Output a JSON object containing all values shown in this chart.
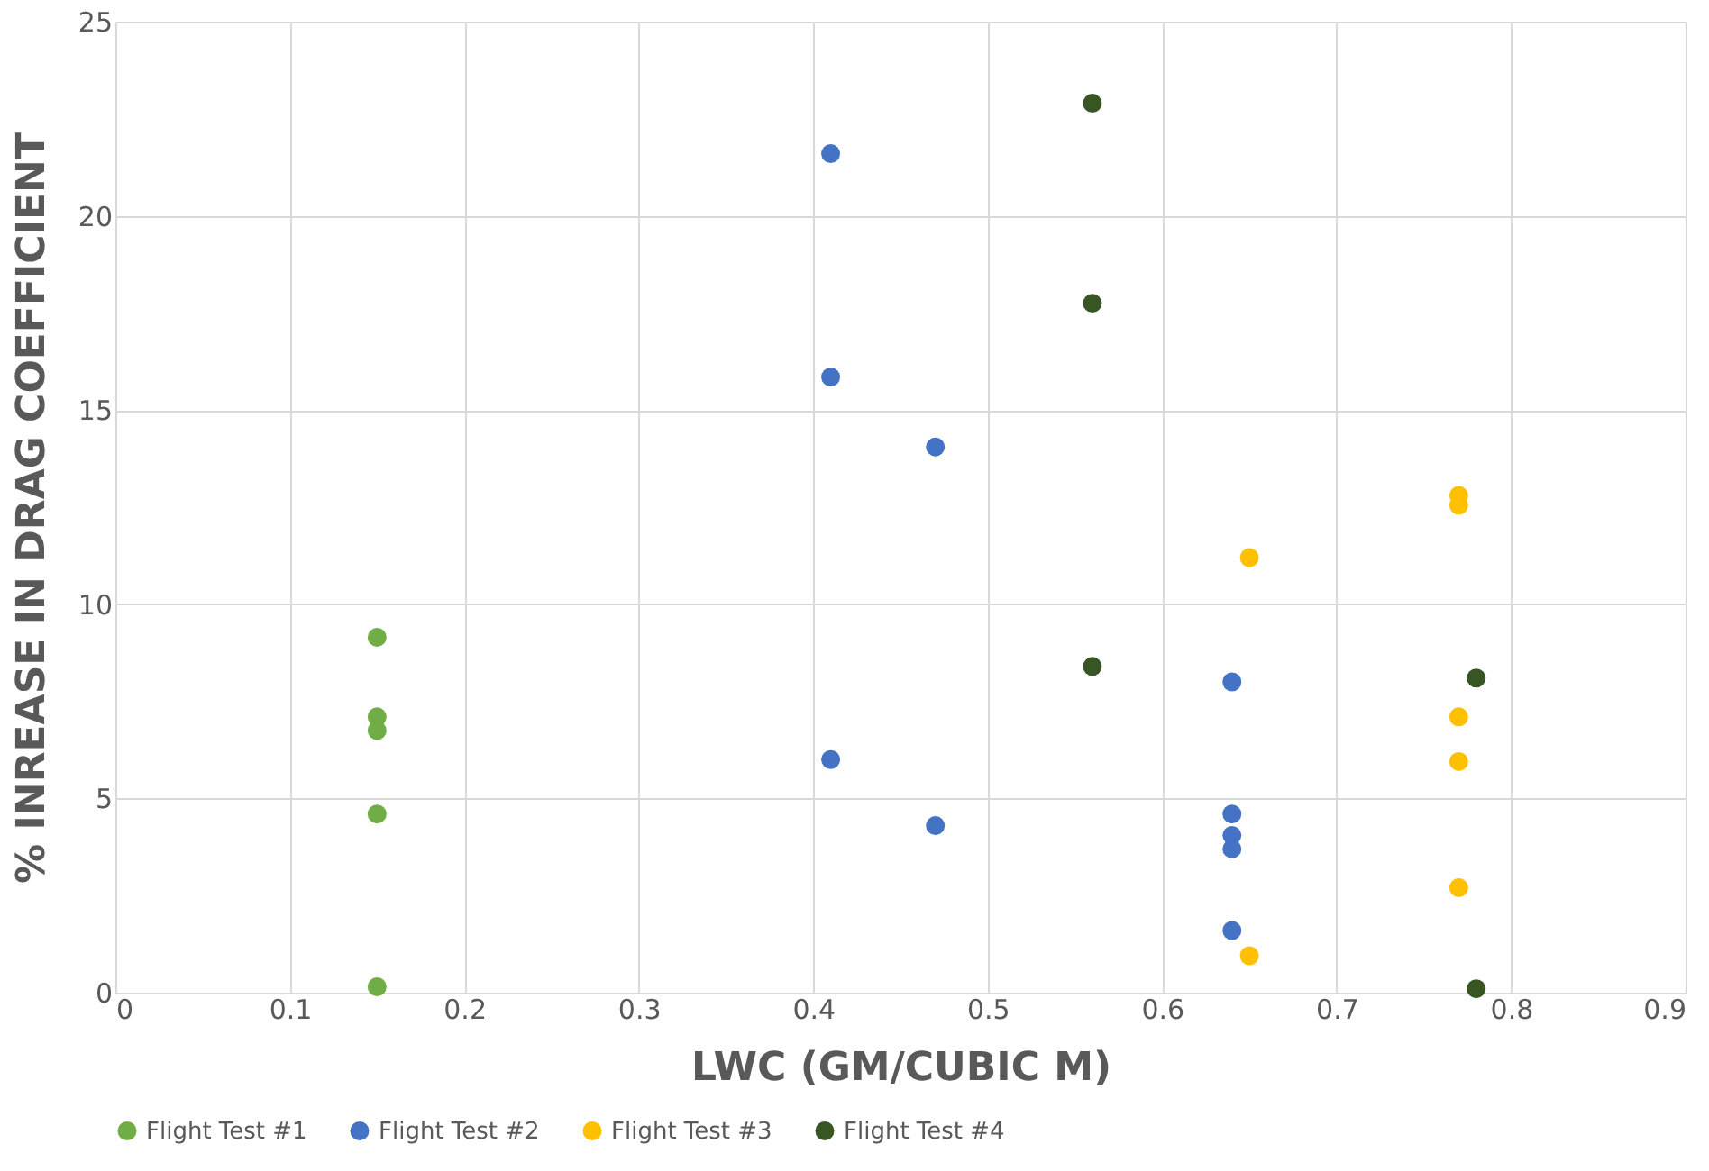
{
  "chart_data": {
    "type": "scatter",
    "xlabel": "LWC (GM/CUBIC M)",
    "ylabel": "% INREASE IN DRAG COEFFICIENT",
    "xlim": [
      0,
      0.9
    ],
    "xticks": [
      0,
      0.1,
      0.2,
      0.3,
      0.4,
      0.5,
      0.6,
      0.7,
      0.8,
      0.9
    ],
    "ylim": [
      0,
      25
    ],
    "yticks": [
      0,
      5,
      10,
      15,
      20,
      25
    ],
    "grid": true,
    "legend": "bottom",
    "marker": "circle",
    "series": [
      {
        "name": "Flight Test #1",
        "color": "#70ad47",
        "x": [
          0.15,
          0.15,
          0.15,
          0.15,
          0.15
        ],
        "values": [
          9.15,
          7.1,
          6.75,
          4.6,
          0.15
        ]
      },
      {
        "name": "Flight Test #2",
        "color": "#4472c4",
        "x": [
          0.41,
          0.41,
          0.41,
          0.47,
          0.47,
          0.64,
          0.64,
          0.64,
          0.64,
          0.64
        ],
        "values": [
          21.6,
          15.85,
          6.0,
          14.05,
          4.3,
          8.0,
          4.6,
          4.05,
          3.7,
          1.6
        ]
      },
      {
        "name": "Flight Test #3",
        "color": "#ffc000",
        "x": [
          0.65,
          0.65,
          0.77,
          0.77,
          0.77,
          0.77,
          0.77
        ],
        "values": [
          11.2,
          0.95,
          12.8,
          12.55,
          7.1,
          5.95,
          2.7
        ]
      },
      {
        "name": "Flight Test #4",
        "color": "#375623",
        "x": [
          0.56,
          0.56,
          0.56,
          0.78,
          0.78
        ],
        "values": [
          22.9,
          17.75,
          8.4,
          8.1,
          0.1
        ]
      }
    ]
  }
}
